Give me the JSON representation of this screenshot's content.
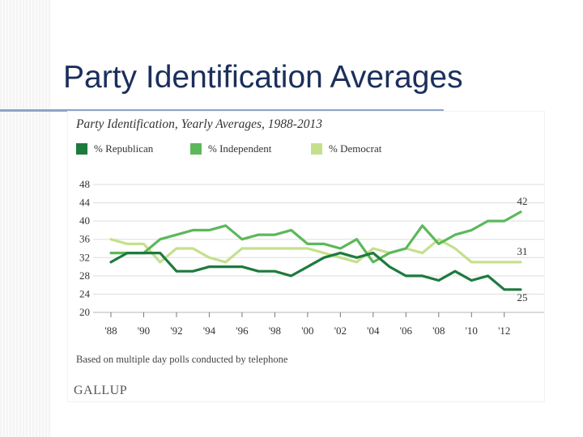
{
  "slide": {
    "title": "Party Identification Averages"
  },
  "chart_data": {
    "type": "line",
    "title": "Party Identification, Yearly Averages, 1988-2013",
    "xlabel": "",
    "ylabel": "",
    "x": [
      1988,
      1989,
      1990,
      1991,
      1992,
      1993,
      1994,
      1995,
      1996,
      1997,
      1998,
      1999,
      2000,
      2001,
      2002,
      2003,
      2004,
      2005,
      2006,
      2007,
      2008,
      2009,
      2010,
      2011,
      2012,
      2013
    ],
    "xlim": [
      1988,
      2013
    ],
    "ylim": [
      20,
      48
    ],
    "x_ticks": [
      {
        "year": 1988,
        "label": "'88"
      },
      {
        "year": 1990,
        "label": "'90"
      },
      {
        "year": 1992,
        "label": "'92"
      },
      {
        "year": 1994,
        "label": "'94"
      },
      {
        "year": 1996,
        "label": "'96"
      },
      {
        "year": 1998,
        "label": "'98"
      },
      {
        "year": 2000,
        "label": "'00"
      },
      {
        "year": 2002,
        "label": "'02"
      },
      {
        "year": 2004,
        "label": "'04"
      },
      {
        "year": 2006,
        "label": "'06"
      },
      {
        "year": 2008,
        "label": "'08"
      },
      {
        "year": 2010,
        "label": "'10"
      },
      {
        "year": 2012,
        "label": "'12"
      }
    ],
    "y_ticks": [
      20,
      24,
      28,
      32,
      36,
      40,
      44,
      48
    ],
    "grid": true,
    "series": [
      {
        "name": "% Republican",
        "color": "#1e7a3e",
        "values": [
          31,
          33,
          33,
          33,
          29,
          29,
          30,
          30,
          30,
          29,
          29,
          28,
          30,
          32,
          33,
          32,
          33,
          30,
          28,
          28,
          27,
          29,
          27,
          28,
          25,
          25
        ],
        "end_label": "25"
      },
      {
        "name": "% Independent",
        "color": "#5cb85a",
        "values": [
          33,
          33,
          33,
          36,
          37,
          38,
          38,
          39,
          36,
          37,
          37,
          38,
          35,
          35,
          34,
          36,
          31,
          33,
          34,
          39,
          35,
          37,
          38,
          40,
          40,
          42
        ],
        "end_label": "42"
      },
      {
        "name": "% Democrat",
        "color": "#c5e08c",
        "values": [
          36,
          35,
          35,
          31,
          34,
          34,
          32,
          31,
          34,
          34,
          34,
          34,
          34,
          33,
          32,
          31,
          34,
          33,
          34,
          33,
          36,
          34,
          31,
          31,
          31,
          31
        ],
        "end_label": "31"
      }
    ],
    "legend_position": "top",
    "footnote": "Based on multiple day polls conducted by telephone",
    "source_brand": "GALLUP"
  }
}
